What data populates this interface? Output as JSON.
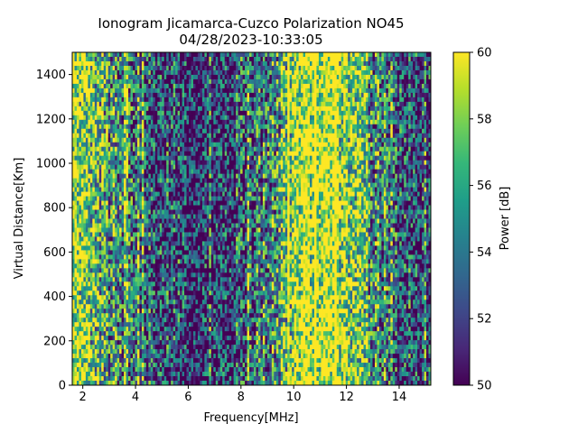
{
  "chart_data": {
    "type": "heatmap",
    "title": "Ionogram Jicamarca-Cuzco Polarization NO45",
    "subtitle": "04/28/2023-10:33:05",
    "xlabel": "Frequency[MHz]",
    "ylabel": "Virtual Distance[Km]",
    "xlim": [
      1.6,
      15.2
    ],
    "ylim": [
      0,
      1500
    ],
    "x_ticks": [
      2,
      4,
      6,
      8,
      10,
      12,
      14
    ],
    "y_ticks": [
      0,
      200,
      400,
      600,
      800,
      1000,
      1200,
      1400
    ],
    "colorbar": {
      "label": "Power [dB]",
      "range": [
        50,
        60
      ],
      "ticks": [
        50,
        52,
        54,
        56,
        58,
        60
      ],
      "colormap": "viridis"
    },
    "colormap_stops": [
      "#440154",
      "#482878",
      "#3e4989",
      "#31688e",
      "#26828e",
      "#1f9e89",
      "#35b779",
      "#6ece58",
      "#b5de2b",
      "#fde725"
    ],
    "frequency_profile_mhz": [
      1.6,
      2.0,
      2.5,
      3.0,
      3.5,
      4.0,
      4.5,
      5.0,
      5.5,
      6.0,
      6.5,
      7.0,
      7.5,
      8.0,
      8.5,
      9.0,
      9.5,
      10.0,
      10.5,
      11.0,
      11.5,
      12.0,
      12.5,
      13.0,
      13.5,
      14.0,
      14.5,
      15.2
    ],
    "mean_power_db_profile": [
      59.0,
      58.0,
      57.0,
      55.5,
      54.0,
      53.5,
      53.0,
      52.5,
      52.5,
      52.0,
      51.5,
      51.5,
      52.0,
      53.0,
      54.0,
      55.0,
      56.0,
      58.5,
      59.8,
      60.0,
      59.8,
      58.5,
      57.0,
      55.0,
      53.5,
      53.0,
      52.5,
      52.0
    ]
  }
}
